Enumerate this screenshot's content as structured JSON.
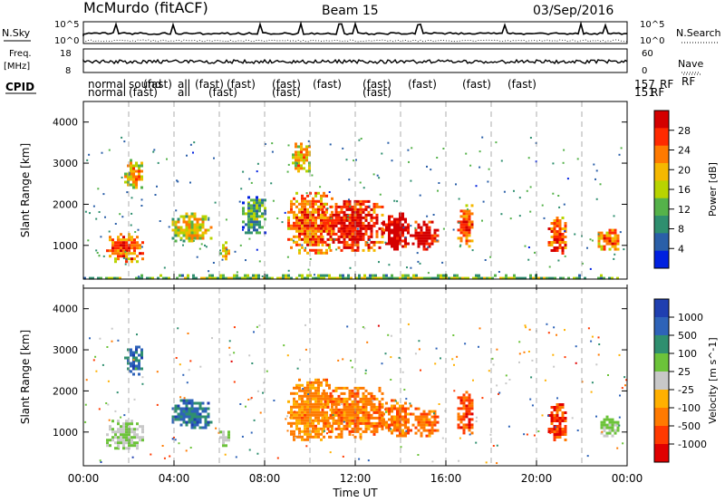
{
  "header": {
    "station": "McMurdo (fitACF)",
    "beam": "Beam 15",
    "date": "03/Sep/2016"
  },
  "strip_labels": {
    "nsky": "N.Sky",
    "nsearch": "N.Search",
    "freq": "Freq.",
    "freq_unit": "[MHz]",
    "nave": "Nave",
    "cpid": "CPID",
    "rf": "RF"
  },
  "strip_ticks": {
    "noise_left": [
      "10^5",
      "10^0"
    ],
    "noise_right": [
      "10^5",
      "10^0"
    ],
    "freq_left": [
      "18",
      "8"
    ],
    "nave_right": [
      "60",
      "0"
    ]
  },
  "cpid_text": {
    "row1": [
      "normal",
      "sound",
      "(fast)",
      "all",
      "(fast)",
      "(fast)",
      "(fast)",
      "(fast)",
      "(fast)",
      "(fast)",
      "(fast)",
      "(fast)",
      "157",
      "RF"
    ],
    "row2": [
      "normal",
      "(fast)",
      "all",
      "(fast)",
      "(fast)",
      "(fast)",
      "151",
      "RF"
    ]
  },
  "colorbars": {
    "power": {
      "label": "Power [dB]",
      "ticks": [
        "28",
        "24",
        "20",
        "16",
        "12",
        "8",
        "4"
      ],
      "colors": [
        "#d40000",
        "#ff2a00",
        "#ff7a00",
        "#f5b800",
        "#b8d400",
        "#55b24a",
        "#2f8f6f",
        "#2a5fa8",
        "#0020e0"
      ]
    },
    "velocity": {
      "label": "Velocity [m s^-1]",
      "ticks": [
        "1000",
        "500",
        "100",
        "25",
        "-25",
        "-100",
        "-500",
        "-1000"
      ],
      "colors": [
        "#1f3fb0",
        "#2e63b8",
        "#2f8f6f",
        "#6cc33a",
        "#c8c8c8",
        "#ffb000",
        "#ff7a00",
        "#ff3a00",
        "#e00000"
      ]
    }
  },
  "chart_data": [
    {
      "type": "heatmap",
      "title": "Power",
      "xlabel": "Time UT",
      "ylabel": "Slant Range [km]",
      "x_ticks": [
        "00:00",
        "04:00",
        "08:00",
        "12:00",
        "16:00",
        "20:00",
        "00:00"
      ],
      "y_ticks": [
        "4000",
        "3000",
        "2000",
        "1000"
      ],
      "xlim_hours": [
        0,
        24
      ],
      "ylim_km": [
        180,
        4500
      ],
      "colorbar_range_db": [
        0,
        30
      ],
      "echo_regions": [
        {
          "t0": 1.0,
          "t1": 2.6,
          "r0": 600,
          "r1": 1300,
          "val": 18
        },
        {
          "t0": 1.8,
          "t1": 2.6,
          "r0": 2400,
          "r1": 3100,
          "val": 14
        },
        {
          "t0": 3.9,
          "t1": 5.6,
          "r0": 1100,
          "r1": 1800,
          "val": 12
        },
        {
          "t0": 6.0,
          "t1": 6.4,
          "r0": 700,
          "r1": 1100,
          "val": 12
        },
        {
          "t0": 7.0,
          "t1": 8.0,
          "r0": 1300,
          "r1": 2200,
          "val": 6
        },
        {
          "t0": 9.0,
          "t1": 11.0,
          "r0": 800,
          "r1": 2300,
          "val": 18
        },
        {
          "t0": 9.2,
          "t1": 10.0,
          "r0": 2800,
          "r1": 3500,
          "val": 14
        },
        {
          "t0": 10.5,
          "t1": 13.2,
          "r0": 900,
          "r1": 2100,
          "val": 22
        },
        {
          "t0": 13.2,
          "t1": 14.4,
          "r0": 900,
          "r1": 1800,
          "val": 25
        },
        {
          "t0": 14.5,
          "t1": 15.6,
          "r0": 900,
          "r1": 1600,
          "val": 24
        },
        {
          "t0": 16.5,
          "t1": 17.2,
          "r0": 1000,
          "r1": 2000,
          "val": 18
        },
        {
          "t0": 20.5,
          "t1": 21.3,
          "r0": 800,
          "r1": 1700,
          "val": 19
        },
        {
          "t0": 22.7,
          "t1": 23.6,
          "r0": 900,
          "r1": 1400,
          "val": 17
        },
        {
          "t0": 0.0,
          "t1": 24.0,
          "r0": 180,
          "r1": 300,
          "val": 8
        }
      ]
    },
    {
      "type": "heatmap",
      "title": "Velocity",
      "xlabel": "Time UT",
      "ylabel": "Slant Range [km]",
      "x_ticks": [
        "00:00",
        "04:00",
        "08:00",
        "12:00",
        "16:00",
        "20:00",
        "00:00"
      ],
      "y_ticks": [
        "4000",
        "3000",
        "2000",
        "1000"
      ],
      "xlim_hours": [
        0,
        24
      ],
      "ylim_km": [
        180,
        4500
      ],
      "colorbar_range_ms": [
        -1000,
        1000
      ],
      "echo_regions": [
        {
          "t0": 1.0,
          "t1": 2.6,
          "r0": 600,
          "r1": 1300,
          "val": 100
        },
        {
          "t0": 1.8,
          "t1": 2.6,
          "r0": 2400,
          "r1": 3100,
          "val": 600
        },
        {
          "t0": 3.9,
          "t1": 5.6,
          "r0": 1100,
          "r1": 1800,
          "val": 600
        },
        {
          "t0": 6.0,
          "t1": 6.4,
          "r0": 700,
          "r1": 1100,
          "val": 100
        },
        {
          "t0": 9.0,
          "t1": 11.0,
          "r0": 800,
          "r1": 2300,
          "val": -400
        },
        {
          "t0": 10.5,
          "t1": 13.2,
          "r0": 900,
          "r1": 2100,
          "val": -450
        },
        {
          "t0": 13.2,
          "t1": 14.4,
          "r0": 900,
          "r1": 1800,
          "val": -450
        },
        {
          "t0": 14.5,
          "t1": 15.6,
          "r0": 900,
          "r1": 1600,
          "val": -450
        },
        {
          "t0": 16.5,
          "t1": 17.2,
          "r0": 1000,
          "r1": 2000,
          "val": -600
        },
        {
          "t0": 20.5,
          "t1": 21.3,
          "r0": 800,
          "r1": 1700,
          "val": -700
        },
        {
          "t0": 22.7,
          "t1": 23.6,
          "r0": 900,
          "r1": 1400,
          "val": 150
        }
      ]
    }
  ]
}
